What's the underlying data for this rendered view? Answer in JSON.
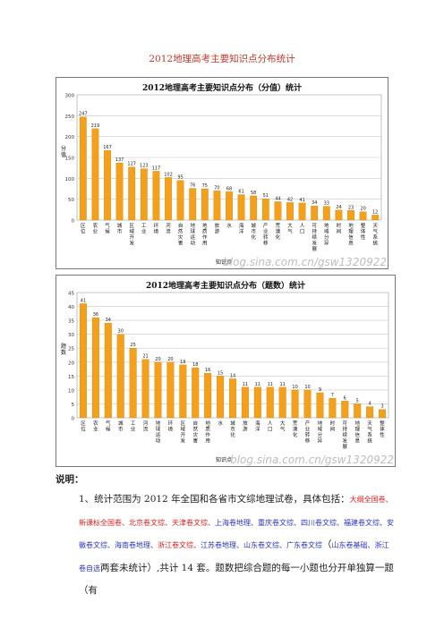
{
  "page": {
    "title": "2012地理高考主要知识点分布统计",
    "notes_heading": "说明：",
    "notes": [
      {
        "t": "1、统计范围为 2012 年全国和各省市文综地理试卷，具体包括：",
        "c": "k"
      },
      {
        "t": "大纲全国卷、新课标全国卷、北京卷文综、天津卷文综、",
        "c": "red"
      },
      {
        "t": "上海卷地理、",
        "c": "blue"
      },
      {
        "t": "重庆卷文综、四川卷文综、福建卷文综、安徽卷文综、海南卷地理、",
        "c": "blue"
      },
      {
        "t": "浙江卷文综、",
        "c": "red"
      },
      {
        "t": "江苏卷地理、山东卷文综、广东卷文综",
        "c": "blue"
      },
      {
        "t": "（",
        "c": "k"
      },
      {
        "t": "山东卷基础、浙江卷自选",
        "c": "blue"
      },
      {
        "t": "两套未统计）,共计 14 套。题数把综合题的每一小题也分开单独算一题（有",
        "c": "k"
      }
    ]
  },
  "chart_data": [
    {
      "type": "bar",
      "title": "2012地理高考主要知识点分布（分值）统计",
      "ylabel": "分值",
      "xlabel": "知识点",
      "ylim": [
        0,
        300
      ],
      "yticks": [
        0,
        50,
        100,
        150,
        200,
        250,
        300
      ],
      "watermark": "blog.sina.com.cn/gsw1320922",
      "categories": [
        "区位",
        "农业",
        "气候",
        "城市",
        "区域开发",
        "工业",
        "环境",
        "河流",
        "自然灾害",
        "地球运动",
        "地质作用",
        "旅游",
        "水",
        "海洋",
        "城市化",
        "产业转移",
        "荒漠化",
        "大气",
        "人口",
        "可持续发展",
        "地域分异",
        "时间",
        "地理信息",
        "整体性",
        "天气系统"
      ],
      "values": [
        247,
        219,
        167,
        137,
        127,
        123,
        117,
        102,
        95,
        76,
        75,
        70,
        68,
        61,
        58,
        51,
        44,
        42,
        41,
        34,
        33,
        24,
        23,
        20,
        12
      ],
      "grid": true,
      "color": "#f5a01a"
    },
    {
      "type": "bar",
      "title": "2012地理高考主要知识点分布（题数）统计",
      "ylabel": "题数",
      "xlabel": "知识点",
      "ylim": [
        0,
        45
      ],
      "yticks": [
        0,
        5,
        10,
        15,
        20,
        25,
        30,
        35,
        40,
        45
      ],
      "watermark": "blog.sina.com.cn/gsw1320922",
      "categories": [
        "区位",
        "农业",
        "气候",
        "城市",
        "工业",
        "河流",
        "地球运动",
        "环境",
        "区域开发",
        "自然灾害",
        "地质作用",
        "水",
        "城市化",
        "旅游",
        "海洋",
        "人口",
        "大气",
        "荒漠化",
        "产业转移",
        "地域分异",
        "时间",
        "可持续发展",
        "地理信息",
        "天气系统",
        "整体性"
      ],
      "values": [
        41,
        36,
        34,
        30,
        25,
        21,
        20,
        20,
        19,
        18,
        16,
        15,
        14,
        11,
        11,
        11,
        11,
        10,
        10,
        9,
        7,
        6,
        5,
        4,
        3
      ],
      "grid": true,
      "color": "#f5a01a"
    }
  ]
}
